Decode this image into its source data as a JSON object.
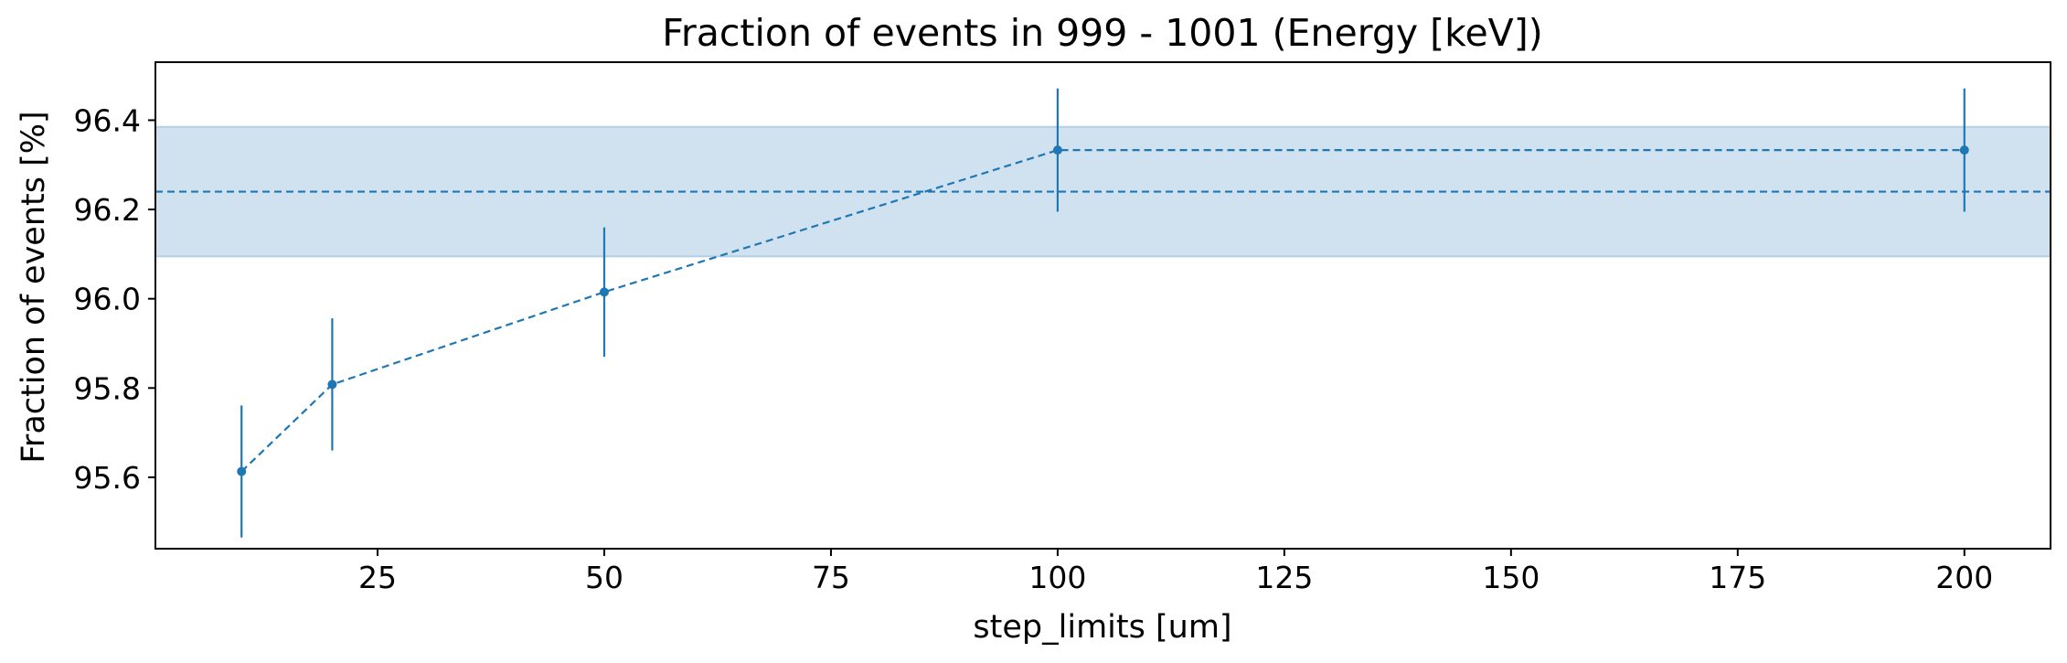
{
  "chart_data": {
    "type": "line",
    "title": "Fraction of events in 999 - 1001 (Energy [keV])",
    "xlabel": "step_limits [um]",
    "ylabel": "Fraction of events [%]",
    "xlim": [
      0.5,
      209.5
    ],
    "ylim": [
      95.44,
      96.53
    ],
    "xticks": [
      25,
      50,
      75,
      100,
      125,
      150,
      175,
      200
    ],
    "xtick_labels": [
      "25",
      "50",
      "75",
      "100",
      "125",
      "150",
      "175",
      "200"
    ],
    "yticks": [
      95.6,
      95.8,
      96.0,
      96.2,
      96.4
    ],
    "ytick_labels": [
      "95.6",
      "95.8",
      "96.0",
      "96.2",
      "96.4"
    ],
    "grid": false,
    "series": [
      {
        "x": [
          10,
          20,
          50,
          100,
          200
        ],
        "y": [
          95.613,
          95.808,
          96.015,
          96.333,
          96.333
        ],
        "yerr": [
          0.148,
          0.148,
          0.145,
          0.138,
          0.138
        ],
        "linestyle": "dashed",
        "marker": "circle"
      }
    ],
    "reference": {
      "value": 96.24,
      "band": [
        96.095,
        96.385
      ],
      "linestyle": "dashed"
    },
    "colors": {
      "series": "#1f77b4",
      "band_fill": "#d0e2ef",
      "band_edge": "#b3cfe6",
      "axes": "#000000"
    }
  }
}
